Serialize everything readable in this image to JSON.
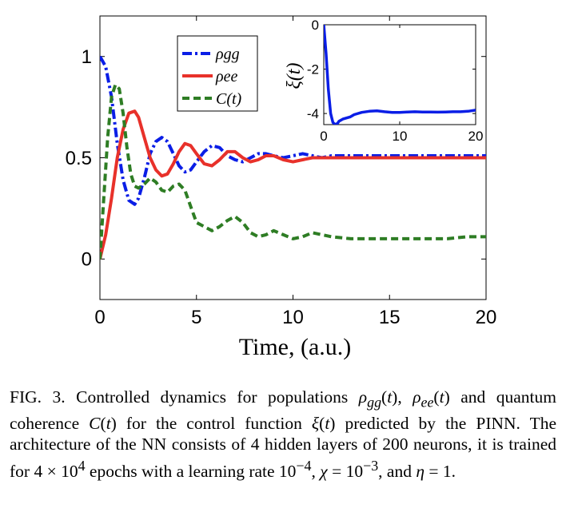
{
  "figure": {
    "xlabel": "Time,  (a.u.)",
    "caption_label": "FIG. 3.",
    "caption_text": "Controlled dynamics for populations ρgg(t), ρee(t) and quantum coherence C(t) for the control function ξ(t) predicted by the PINN. The architecture of the NN consists of 4 hidden layers of 200 neurons, it is trained for 4 × 10^4 epochs with a learning rate 10^−4, χ = 10^−3, and η = 1."
  },
  "chart_data": [
    {
      "type": "line",
      "xlabel": "Time,  (a.u.)",
      "ylabel": "",
      "xlim": [
        0,
        20
      ],
      "ylim": [
        -0.2,
        1.2
      ],
      "xticks": [
        0,
        5,
        10,
        15,
        20
      ],
      "yticks": [
        0,
        0.5,
        1
      ],
      "xtick_labels": [
        "0",
        "5",
        "10",
        "15",
        "20"
      ],
      "ytick_labels": [
        "0",
        "0.5",
        "1"
      ],
      "legend": {
        "position": "top-center",
        "entries": [
          {
            "label": "ρgg",
            "color": "#0a1ee6",
            "style": "dash-dot"
          },
          {
            "label": "ρee",
            "color": "#e8312a",
            "style": "solid"
          },
          {
            "label": "C(t)",
            "color": "#2e7d24",
            "style": "dashed"
          }
        ]
      },
      "series": [
        {
          "name": "ρgg",
          "color": "#0a1ee6",
          "style": "dash-dot",
          "x": [
            0,
            0.3,
            0.6,
            0.9,
            1.2,
            1.5,
            1.8,
            2.0,
            2.3,
            2.6,
            2.9,
            3.2,
            3.5,
            3.8,
            4.1,
            4.4,
            4.7,
            5.0,
            5.4,
            5.8,
            6.2,
            6.6,
            7.0,
            7.4,
            7.8,
            8.2,
            8.6,
            9.0,
            9.5,
            10.0,
            10.5,
            11.0,
            11.5,
            12.0,
            13,
            14,
            15,
            16,
            17,
            18,
            19,
            20
          ],
          "y": [
            1.0,
            0.95,
            0.8,
            0.57,
            0.39,
            0.29,
            0.27,
            0.3,
            0.4,
            0.52,
            0.58,
            0.6,
            0.58,
            0.52,
            0.46,
            0.43,
            0.44,
            0.48,
            0.53,
            0.56,
            0.55,
            0.51,
            0.49,
            0.48,
            0.5,
            0.52,
            0.52,
            0.51,
            0.5,
            0.51,
            0.52,
            0.51,
            0.5,
            0.51,
            0.51,
            0.51,
            0.51,
            0.51,
            0.51,
            0.51,
            0.51,
            0.51
          ]
        },
        {
          "name": "ρee",
          "color": "#e8312a",
          "style": "solid",
          "x": [
            0,
            0.3,
            0.6,
            0.9,
            1.2,
            1.5,
            1.8,
            2.0,
            2.3,
            2.6,
            2.9,
            3.2,
            3.5,
            3.8,
            4.1,
            4.4,
            4.7,
            5.0,
            5.4,
            5.8,
            6.2,
            6.6,
            7.0,
            7.4,
            7.8,
            8.2,
            8.6,
            9.0,
            9.5,
            10.0,
            10.5,
            11.0,
            11.5,
            12.0,
            13,
            14,
            15,
            16,
            17,
            18,
            19,
            20
          ],
          "y": [
            0.0,
            0.12,
            0.3,
            0.5,
            0.64,
            0.72,
            0.73,
            0.7,
            0.6,
            0.5,
            0.44,
            0.41,
            0.42,
            0.47,
            0.53,
            0.57,
            0.56,
            0.52,
            0.47,
            0.46,
            0.49,
            0.53,
            0.53,
            0.5,
            0.48,
            0.49,
            0.51,
            0.51,
            0.49,
            0.48,
            0.49,
            0.5,
            0.5,
            0.5,
            0.5,
            0.5,
            0.5,
            0.5,
            0.5,
            0.5,
            0.5,
            0.5
          ]
        },
        {
          "name": "C(t)",
          "color": "#2e7d24",
          "style": "dashed",
          "x": [
            0,
            0.2,
            0.4,
            0.6,
            0.8,
            1.0,
            1.2,
            1.4,
            1.6,
            1.8,
            2.0,
            2.3,
            2.6,
            2.9,
            3.2,
            3.5,
            3.8,
            4.1,
            4.4,
            4.7,
            5.0,
            5.4,
            5.8,
            6.2,
            6.6,
            7.0,
            7.4,
            7.8,
            8.2,
            8.6,
            9.0,
            9.5,
            10.0,
            10.5,
            11.0,
            11.5,
            12.0,
            13,
            14,
            15,
            16,
            17,
            18,
            19,
            20
          ],
          "y": [
            0.0,
            0.3,
            0.6,
            0.8,
            0.86,
            0.84,
            0.72,
            0.55,
            0.42,
            0.36,
            0.35,
            0.37,
            0.4,
            0.38,
            0.34,
            0.33,
            0.36,
            0.37,
            0.34,
            0.26,
            0.18,
            0.16,
            0.14,
            0.16,
            0.19,
            0.21,
            0.18,
            0.13,
            0.11,
            0.12,
            0.14,
            0.12,
            0.1,
            0.11,
            0.13,
            0.12,
            0.11,
            0.1,
            0.1,
            0.1,
            0.1,
            0.1,
            0.1,
            0.11,
            0.11
          ]
        }
      ]
    },
    {
      "type": "line",
      "inset": true,
      "xlabel": "",
      "ylabel": "ξ(t)",
      "xlim": [
        0,
        20
      ],
      "ylim": [
        -4.5,
        0
      ],
      "xticks": [
        0,
        10,
        20
      ],
      "yticks": [
        0,
        -2,
        -4
      ],
      "xtick_labels": [
        "0",
        "10",
        "20"
      ],
      "ytick_labels": [
        "0",
        "-2",
        "-4"
      ],
      "series": [
        {
          "color": "#0a1ee6",
          "style": "solid",
          "x": [
            0,
            0.3,
            0.6,
            0.9,
            1.2,
            1.5,
            1.8,
            2.0,
            2.5,
            3.0,
            3.5,
            4.0,
            5,
            6,
            7,
            8,
            9,
            10,
            11,
            12,
            13,
            14,
            15,
            16,
            17,
            18,
            19,
            20
          ],
          "y": [
            0,
            -1.3,
            -2.9,
            -4.0,
            -4.4,
            -4.5,
            -4.45,
            -4.35,
            -4.25,
            -4.2,
            -4.15,
            -4.05,
            -3.95,
            -3.9,
            -3.88,
            -3.92,
            -3.95,
            -3.95,
            -3.93,
            -3.92,
            -3.93,
            -3.93,
            -3.94,
            -3.93,
            -3.92,
            -3.92,
            -3.9,
            -3.85
          ]
        }
      ]
    }
  ]
}
